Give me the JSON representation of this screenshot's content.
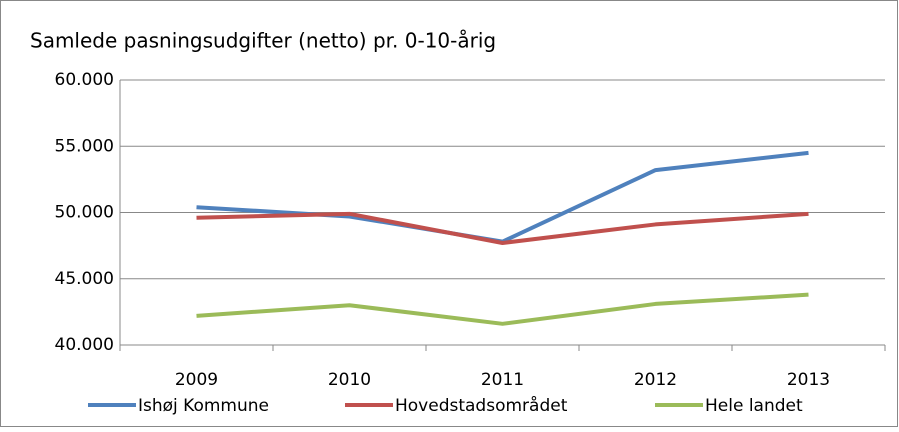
{
  "chart_data": {
    "type": "line",
    "title": "Samlede pasningsudgifter (netto) pr. 0-10-årig",
    "categories": [
      "2009",
      "2010",
      "2011",
      "2012",
      "2013"
    ],
    "series": [
      {
        "name": "Ishøj Kommune",
        "color": "#4f81bd",
        "values": [
          50400,
          49700,
          47800,
          53200,
          54500
        ]
      },
      {
        "name": "Hovedstadsområdet",
        "color": "#c0504d",
        "values": [
          49600,
          49900,
          47700,
          49100,
          49900
        ]
      },
      {
        "name": "Hele landet",
        "color": "#9bbb59",
        "values": [
          42200,
          43000,
          41600,
          43100,
          43800
        ]
      }
    ],
    "ylim": [
      40000,
      60000
    ],
    "yticks": [
      {
        "value": 40000,
        "label": "40.000"
      },
      {
        "value": 45000,
        "label": "45.000"
      },
      {
        "value": 50000,
        "label": "50.000"
      },
      {
        "value": 55000,
        "label": "55.000"
      },
      {
        "value": 60000,
        "label": "60.000"
      }
    ],
    "grid": true,
    "legend": "bottom"
  }
}
